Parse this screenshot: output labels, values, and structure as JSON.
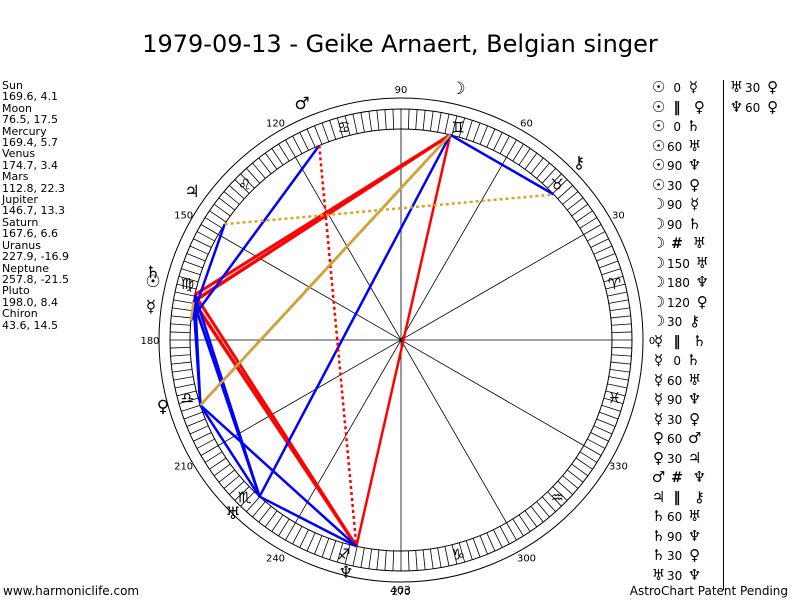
{
  "title": "1979-09-13 - Geike Arnaert, Belgian singer",
  "planets": [
    {
      "name": "Sun",
      "values": "169.6, 4.1"
    },
    {
      "name": "Moon",
      "values": "76.5, 17.5"
    },
    {
      "name": "Mercury",
      "values": "169.4, 5.7"
    },
    {
      "name": "Venus",
      "values": "174.7, 3.4"
    },
    {
      "name": "Mars",
      "values": "112.8, 22.3"
    },
    {
      "name": "Jupiter",
      "values": "146.7, 13.3"
    },
    {
      "name": "Saturn",
      "values": "167.6, 6.6"
    },
    {
      "name": "Uranus",
      "values": "227.9, -16.9"
    },
    {
      "name": "Neptune",
      "values": "257.8, -21.5"
    },
    {
      "name": "Pluto",
      "values": "198.0, 8.4"
    },
    {
      "name": "Chiron",
      "values": "43.6, 14.5"
    }
  ],
  "degree_labels": [
    "90",
    "60",
    "30",
    "0",
    "330",
    "300",
    "270",
    "240",
    "210",
    "180",
    "150",
    "120"
  ],
  "sign_glyphs": [
    "♈",
    "♉",
    "♊",
    "♋",
    "♌",
    "♍",
    "♎",
    "♏",
    "♐",
    "♑",
    "♒",
    "♓"
  ],
  "chart_glyphs": {
    "sun": "☉",
    "moon": "☽",
    "mercury": "☿",
    "venus": "♀",
    "mars": "♂",
    "jupiter": "♃",
    "saturn": "♄",
    "uranus": "♅",
    "neptune": "♆",
    "chiron": "⚷"
  },
  "aspects_col1": [
    {
      "p1": "☉",
      "angle": "0",
      "p2": "☿"
    },
    {
      "p1": "☉",
      "angle": "‖",
      "p2": "♀"
    },
    {
      "p1": "☉",
      "angle": "0",
      "p2": "♄"
    },
    {
      "p1": "☉",
      "angle": "60",
      "p2": "♅"
    },
    {
      "p1": "☉",
      "angle": "90",
      "p2": "♆"
    },
    {
      "p1": "☉",
      "angle": "30",
      "p2": "♀"
    },
    {
      "p1": "☽",
      "angle": "90",
      "p2": "☿"
    },
    {
      "p1": "☽",
      "angle": "90",
      "p2": "♄"
    },
    {
      "p1": "☽",
      "angle": "#",
      "p2": "♅"
    },
    {
      "p1": "☽",
      "angle": "150",
      "p2": "♅"
    },
    {
      "p1": "☽",
      "angle": "180",
      "p2": "♆"
    },
    {
      "p1": "☽",
      "angle": "120",
      "p2": "♀"
    },
    {
      "p1": "☽",
      "angle": "30",
      "p2": "⚷"
    },
    {
      "p1": "☿",
      "angle": "‖",
      "p2": "♄"
    },
    {
      "p1": "☿",
      "angle": "0",
      "p2": "♄"
    },
    {
      "p1": "☿",
      "angle": "60",
      "p2": "♅"
    },
    {
      "p1": "☿",
      "angle": "90",
      "p2": "♆"
    },
    {
      "p1": "☿",
      "angle": "30",
      "p2": "♀"
    },
    {
      "p1": "♀",
      "angle": "60",
      "p2": "♂"
    },
    {
      "p1": "♀",
      "angle": "30",
      "p2": "♃"
    },
    {
      "p1": "♂",
      "angle": "#",
      "p2": "♆"
    },
    {
      "p1": "♃",
      "angle": "‖",
      "p2": "⚷"
    },
    {
      "p1": "♄",
      "angle": "60",
      "p2": "♅"
    },
    {
      "p1": "♄",
      "angle": "90",
      "p2": "♆"
    },
    {
      "p1": "♄",
      "angle": "30",
      "p2": "♀"
    },
    {
      "p1": "♅",
      "angle": "30",
      "p2": "♆"
    }
  ],
  "aspects_col2": [
    {
      "p1": "♅",
      "angle": "30",
      "p2": "♀"
    },
    {
      "p1": "♆",
      "angle": "60",
      "p2": "♀"
    }
  ],
  "center_number": "403",
  "footer_left": "www.harmoniclife.com",
  "footer_right": "AstroChart Patent Pending",
  "colors": {
    "hard": "#ff0000",
    "soft": "#0000ff",
    "minor": "#daa520",
    "text": "#000000"
  }
}
